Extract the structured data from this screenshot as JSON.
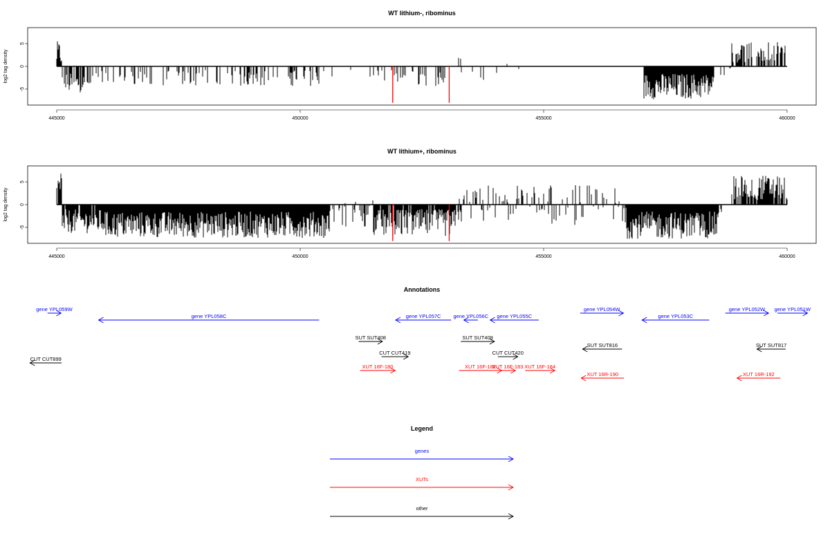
{
  "colors": {
    "signal": "#000000",
    "highlight": "#ff0000",
    "genes": "#0000ff",
    "xuts": "#ff0000",
    "other": "#000000"
  },
  "chart_data": [
    {
      "type": "bar",
      "title": "WT lithium-, ribominus",
      "ylabel": "log2 tag density",
      "xlim": [
        445000,
        460000
      ],
      "ylim": [
        -8.5,
        8.5
      ],
      "xticks": [
        445000,
        450000,
        455000,
        460000
      ],
      "yticks": [
        5,
        0,
        -5
      ],
      "series": [
        {
          "profile_segments": [
            {
              "x": [
                444990,
                445100
              ],
              "y": [
                0,
                5.5
              ],
              "density": 1.0
            },
            {
              "x": [
                445100,
                445700
              ],
              "y": [
                -5.8,
                -1.5
              ],
              "density": 0.6
            },
            {
              "x": [
                445700,
                450400
              ],
              "y": [
                -4.3,
                -0.8
              ],
              "density": 0.3
            },
            {
              "x": [
                450400,
                451500
              ],
              "y": [
                -3.0,
                -0.5
              ],
              "density": 0.08
            },
            {
              "x": [
                451500,
                453000
              ],
              "y": [
                -4.3,
                -0.8
              ],
              "density": 0.3
            },
            {
              "x": [
                453000,
                454600
              ],
              "y": [
                -3.0,
                2.3
              ],
              "density": 0.06
            },
            {
              "x": [
                454600,
                456700
              ],
              "y": [
                -1.5,
                1.0
              ],
              "density": 0.01
            },
            {
              "x": [
                456700,
                457050
              ],
              "y": [
                -3.0,
                0.5
              ],
              "density": 0.1
            },
            {
              "x": [
                457050,
                458500
              ],
              "y": [
                -7.2,
                -1.5
              ],
              "density": 1.0
            },
            {
              "x": [
                458500,
                458850
              ],
              "y": [
                -2.0,
                0.5
              ],
              "density": 0.05
            },
            {
              "x": [
                458850,
                460000
              ],
              "y": [
                0.8,
                5.3
              ],
              "density": 0.6
            }
          ],
          "highlight_bars": [
            {
              "x": 451900,
              "y": -8
            },
            {
              "x": 453060,
              "y": -8
            }
          ]
        }
      ]
    },
    {
      "type": "bar",
      "title": "WT lithium+, ribominus",
      "ylabel": "log2 tag density",
      "xlim": [
        445000,
        460000
      ],
      "ylim": [
        -8.5,
        8.5
      ],
      "xticks": [
        445000,
        450000,
        455000,
        460000
      ],
      "yticks": [
        5,
        0,
        -5
      ],
      "series": [
        {
          "profile_segments": [
            {
              "x": [
                444990,
                445100
              ],
              "y": [
                0,
                7.5
              ],
              "density": 1.0
            },
            {
              "x": [
                445100,
                446000
              ],
              "y": [
                -6.3,
                -1.0
              ],
              "density": 0.9
            },
            {
              "x": [
                446000,
                450600
              ],
              "y": [
                -7.3,
                -1.5
              ],
              "density": 1.0
            },
            {
              "x": [
                450600,
                451500
              ],
              "y": [
                -5.0,
                1.0
              ],
              "density": 0.4
            },
            {
              "x": [
                451500,
                453200
              ],
              "y": [
                -7.0,
                -1.0
              ],
              "density": 0.9
            },
            {
              "x": [
                453200,
                456700
              ],
              "y": [
                -4.5,
                4.5
              ],
              "density": 0.45
            },
            {
              "x": [
                456700,
                458600
              ],
              "y": [
                -7.5,
                -1.5
              ],
              "density": 1.0
            },
            {
              "x": [
                458600,
                458850
              ],
              "y": [
                -2.0,
                1.0
              ],
              "density": 0.1
            },
            {
              "x": [
                458850,
                460000
              ],
              "y": [
                1.0,
                6.5
              ],
              "density": 0.8
            }
          ],
          "highlight_bars": [
            {
              "x": 451900,
              "y": -8
            },
            {
              "x": 453060,
              "y": -8
            }
          ]
        }
      ]
    }
  ],
  "annotations": {
    "title": "Annotations",
    "genes": [
      {
        "label": "gene YPL059W",
        "x1": 444810,
        "x2": 445090,
        "dir": "right",
        "row": 0
      },
      {
        "label": "gene YPL058C",
        "x1": 445860,
        "x2": 450390,
        "dir": "left",
        "row": 1
      },
      {
        "label": "gene YPL057C",
        "x1": 451960,
        "x2": 453100,
        "dir": "left",
        "row": 1
      },
      {
        "label": "gene YPL056C",
        "x1": 453360,
        "x2": 453650,
        "dir": "left",
        "row": 1
      },
      {
        "label": "gene YPL055C",
        "x1": 453900,
        "x2": 454900,
        "dir": "left",
        "row": 1
      },
      {
        "label": "gene YPL054W",
        "x1": 455750,
        "x2": 456640,
        "dir": "right",
        "row": 0
      },
      {
        "label": "gene YPL053C",
        "x1": 457020,
        "x2": 458400,
        "dir": "left",
        "row": 1
      },
      {
        "label": "gene YPL052W",
        "x1": 458730,
        "x2": 459620,
        "dir": "right",
        "row": 0
      },
      {
        "label": "gene YPL051W",
        "x1": 459800,
        "x2": 460420,
        "dir": "right",
        "row": 0
      }
    ],
    "xuts": [
      {
        "label": "XUT 16F-180",
        "x1": 451230,
        "x2": 451950,
        "dir": "right",
        "row": 2
      },
      {
        "label": "XUT 16F-182",
        "x1": 453260,
        "x2": 454140,
        "dir": "right",
        "row": 2
      },
      {
        "label": "XUT 16F-183",
        "x1": 454100,
        "x2": 454420,
        "dir": "right",
        "row": 2
      },
      {
        "label": "XUT 16F-184",
        "x1": 454620,
        "x2": 455230,
        "dir": "right",
        "row": 2
      },
      {
        "label": "XUT 16R-190",
        "x1": 455770,
        "x2": 456650,
        "dir": "left",
        "row": 3
      },
      {
        "label": "XUT 16R-192",
        "x1": 458970,
        "x2": 459860,
        "dir": "left",
        "row": 3
      }
    ],
    "other": [
      {
        "label": "SUT SUT408",
        "x1": 451200,
        "x2": 451690,
        "dir": "right",
        "row": 4
      },
      {
        "label": "SUT SUT409",
        "x1": 453300,
        "x2": 453990,
        "dir": "right",
        "row": 4
      },
      {
        "label": "CUT CUT419",
        "x1": 451670,
        "x2": 452220,
        "dir": "right",
        "row": 5
      },
      {
        "label": "CUT CUT420",
        "x1": 454060,
        "x2": 454470,
        "dir": "right",
        "row": 5
      },
      {
        "label": "SUT SUT816",
        "x1": 455800,
        "x2": 456610,
        "dir": "left",
        "row": 6
      },
      {
        "label": "SUT SUT817",
        "x1": 459380,
        "x2": 459970,
        "dir": "left",
        "row": 6
      },
      {
        "label": "CUT CUT899",
        "x1": 444450,
        "x2": 445100,
        "dir": "left",
        "row": 7
      }
    ]
  },
  "legend": {
    "title": "Legend",
    "items": [
      {
        "label": "genes",
        "color": "#0000ff"
      },
      {
        "label": "XUTs",
        "color": "#ff0000"
      },
      {
        "label": "other",
        "color": "#000000"
      }
    ]
  }
}
